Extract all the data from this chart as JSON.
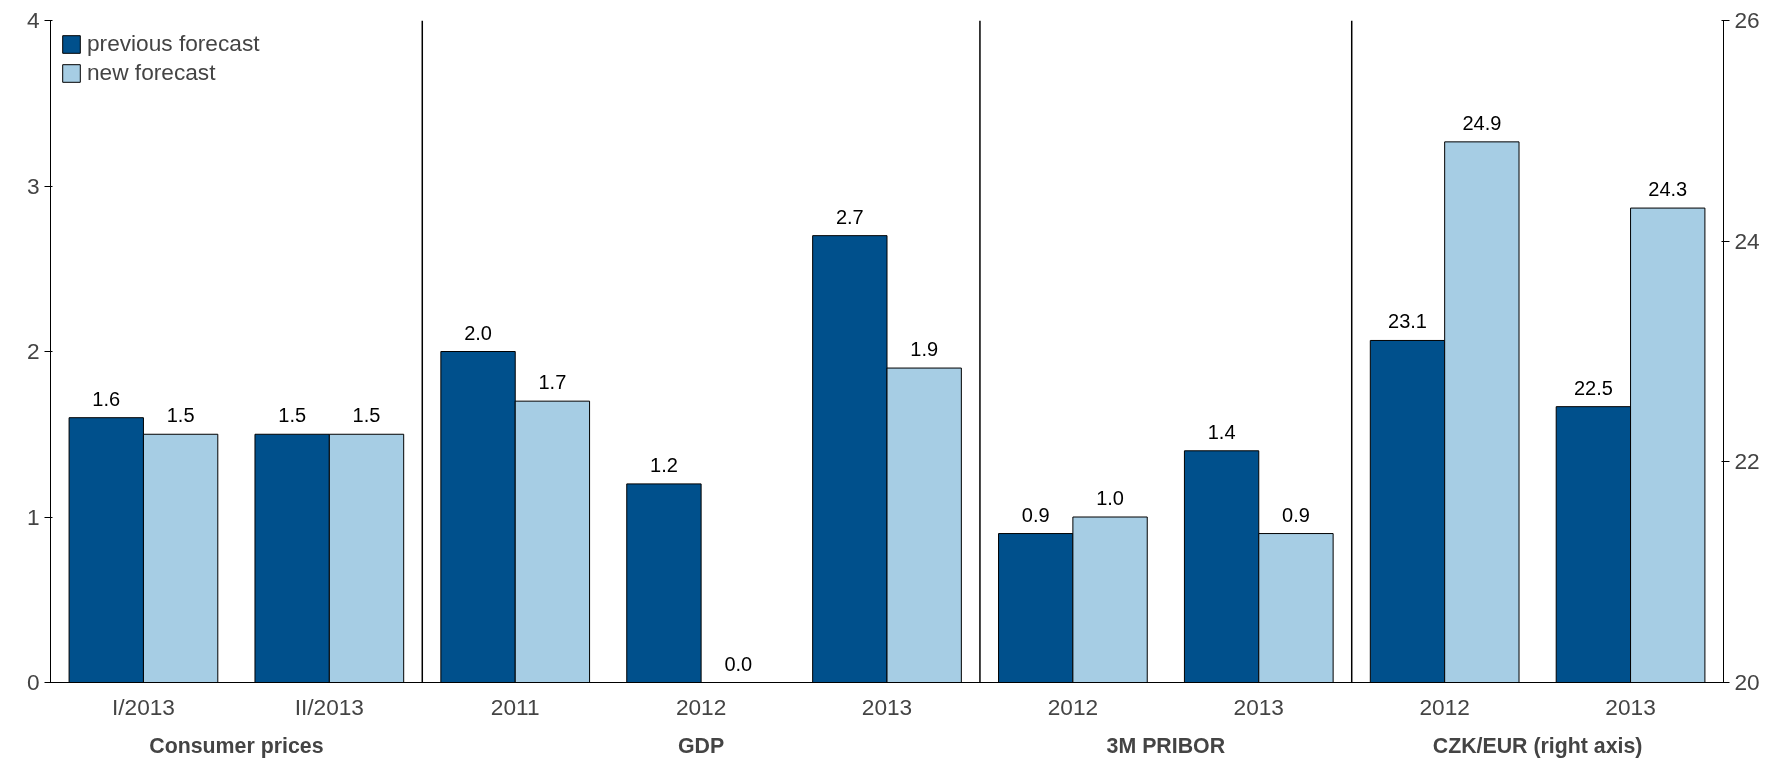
{
  "chart_data": {
    "type": "bar",
    "categories": [
      "I/2013",
      "II/2013",
      "2011",
      "2012",
      "2013",
      "2012",
      "2013",
      "2012",
      "2013"
    ],
    "series": [
      {
        "name": "previous forecast",
        "color": "#00508c",
        "values": [
          1.6,
          1.5,
          2.0,
          1.2,
          2.7,
          0.9,
          1.4,
          null,
          null
        ],
        "value_labels": [
          "1.6",
          "1.5",
          "2.0",
          "1.2",
          "2.7",
          "0.9",
          "1.4",
          null,
          null
        ]
      },
      {
        "name": "new forecast",
        "color": "#a6cde4",
        "values": [
          1.5,
          1.5,
          1.7,
          0.0,
          1.9,
          1.0,
          0.9,
          null,
          null
        ],
        "value_labels": [
          "1.5",
          "1.5",
          "1.7",
          "0.0",
          "1.9",
          "1.0",
          "0.9",
          null,
          null
        ]
      },
      {
        "color": "#00508c",
        "axis": "y2",
        "values": [
          null,
          null,
          null,
          null,
          null,
          null,
          null,
          23.1,
          22.5
        ],
        "value_labels": [
          null,
          null,
          null,
          null,
          null,
          null,
          null,
          "23.1",
          "22.5"
        ]
      },
      {
        "color": "#a6cde4",
        "axis": "y2",
        "values": [
          null,
          null,
          null,
          null,
          null,
          null,
          null,
          24.9,
          24.3
        ],
        "value_labels": [
          null,
          null,
          null,
          null,
          null,
          null,
          null,
          "24.9",
          "24.3"
        ]
      }
    ],
    "annotations": [
      "Consumer prices",
      "GDP",
      "3M PRIBOR",
      "CZK/EUR (right axis)"
    ],
    "ylim": [
      0,
      4
    ],
    "yticks": [
      0,
      1,
      2,
      3,
      4
    ],
    "y2lim": [
      20,
      26
    ],
    "y2ticks": [
      20,
      22,
      24,
      26
    ],
    "grid": false,
    "legend": "top left"
  }
}
